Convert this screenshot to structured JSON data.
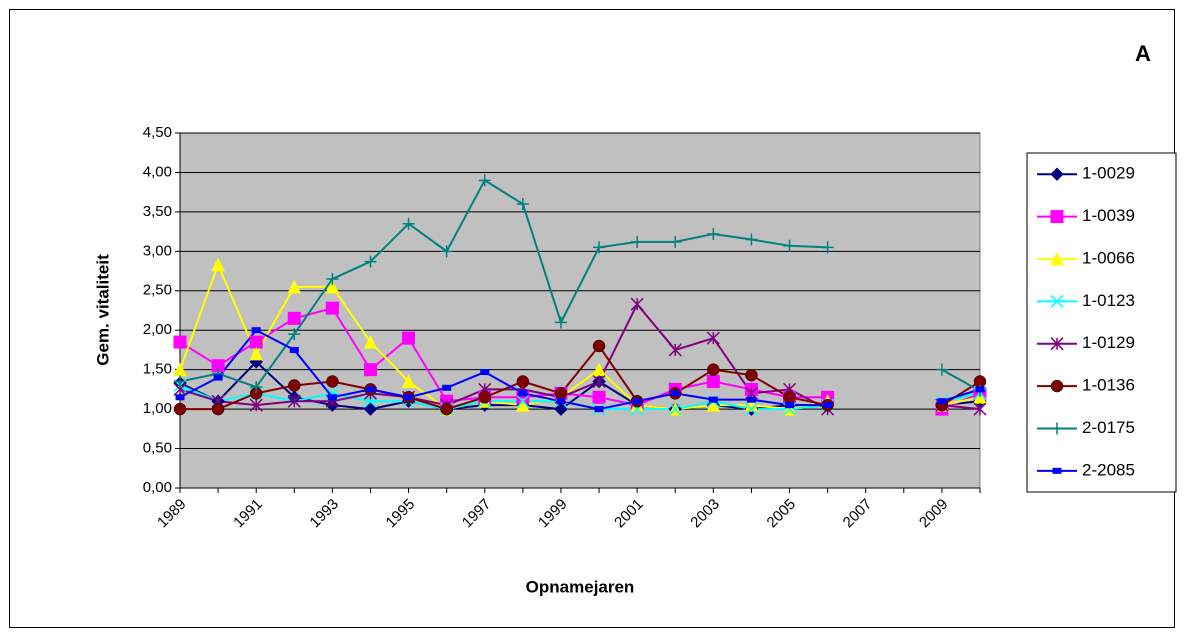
{
  "chart_data": {
    "type": "line",
    "title": "A",
    "x_label": "Opnamejaren",
    "y_label": "Gem. vitaliteit",
    "categories": [
      "1989",
      null,
      "1991",
      null,
      "1993",
      null,
      "1995",
      null,
      "1997",
      null,
      "1999",
      null,
      "2001",
      null,
      "2003",
      null,
      "2005",
      null,
      "2007",
      null,
      "2009",
      null
    ],
    "ylim": [
      0,
      4.5
    ],
    "yticks": [
      {
        "value": 0,
        "label": "0,00"
      },
      {
        "value": 0.5,
        "label": "0,50"
      },
      {
        "value": 1,
        "label": "1,00"
      },
      {
        "value": 1.5,
        "label": "1,50"
      },
      {
        "value": 2,
        "label": "2,00"
      },
      {
        "value": 2.5,
        "label": "2,50"
      },
      {
        "value": 3,
        "label": "3,00"
      },
      {
        "value": 3.5,
        "label": "3,50"
      },
      {
        "value": 4,
        "label": "4,00"
      },
      {
        "value": 4.5,
        "label": "4,50"
      }
    ],
    "grid": true,
    "legend": "right",
    "series": [
      {
        "name": "1-0029",
        "color": "#000080",
        "marker": "diamond",
        "values": [
          1.33,
          1.1,
          1.6,
          1.15,
          1.05,
          1.0,
          1.1,
          1.0,
          1.05,
          1.05,
          1.0,
          1.35,
          1.05,
          1.0,
          1.05,
          1.0,
          1.05,
          1.05,
          null,
          null,
          1.05,
          1.1
        ]
      },
      {
        "name": "1-0039",
        "color": "#ff00ff",
        "marker": "square",
        "values": [
          1.85,
          1.55,
          1.85,
          2.15,
          2.28,
          1.5,
          1.9,
          1.1,
          1.15,
          1.15,
          1.2,
          1.15,
          1.05,
          1.25,
          1.35,
          1.25,
          1.15,
          1.15,
          null,
          null,
          1.0,
          1.2
        ]
      },
      {
        "name": "1-0066",
        "color": "#ffff00",
        "marker": "triangle",
        "values": [
          1.5,
          2.83,
          1.7,
          2.55,
          2.55,
          1.85,
          1.35,
          1.0,
          1.1,
          1.05,
          1.15,
          1.5,
          1.05,
          1.0,
          1.05,
          1.05,
          1.0,
          1.1,
          null,
          null,
          1.05,
          1.15
        ]
      },
      {
        "name": "1-0123",
        "color": "#00ffff",
        "marker": "x",
        "values": [
          1.3,
          1.1,
          1.2,
          1.1,
          1.2,
          1.1,
          1.1,
          1.0,
          1.1,
          1.1,
          1.1,
          1.0,
          1.0,
          1.0,
          1.1,
          1.0,
          1.0,
          1.05,
          null,
          null,
          1.1,
          1.2
        ]
      },
      {
        "name": "1-0129",
        "color": "#800080",
        "marker": "star",
        "values": [
          1.25,
          1.1,
          1.05,
          1.1,
          1.1,
          1.2,
          1.15,
          1.05,
          1.25,
          1.25,
          1.15,
          1.35,
          2.33,
          1.75,
          1.9,
          1.2,
          1.25,
          1.0,
          null,
          null,
          1.05,
          1.0
        ]
      },
      {
        "name": "1-0136",
        "color": "#800000",
        "marker": "circle",
        "values": [
          1.0,
          1.0,
          1.2,
          1.3,
          1.35,
          1.25,
          1.15,
          1.0,
          1.15,
          1.35,
          1.2,
          1.8,
          1.1,
          1.2,
          1.5,
          1.43,
          1.15,
          1.05,
          null,
          null,
          1.05,
          1.35
        ]
      },
      {
        "name": "2-0175",
        "color": "#008080",
        "marker": "plus",
        "values": [
          1.35,
          1.45,
          1.28,
          1.95,
          2.65,
          2.87,
          3.35,
          3.0,
          3.9,
          3.6,
          2.1,
          3.05,
          3.12,
          3.12,
          3.22,
          3.15,
          3.07,
          3.05,
          null,
          null,
          1.5,
          1.23
        ]
      },
      {
        "name": "2-2085",
        "color": "#0000ff",
        "marker": "dash",
        "values": [
          1.15,
          1.4,
          2.0,
          1.75,
          1.15,
          1.25,
          1.15,
          1.27,
          1.47,
          1.2,
          1.1,
          1.0,
          1.1,
          1.2,
          1.12,
          1.12,
          1.05,
          1.05,
          null,
          null,
          1.1,
          1.25
        ]
      }
    ]
  }
}
